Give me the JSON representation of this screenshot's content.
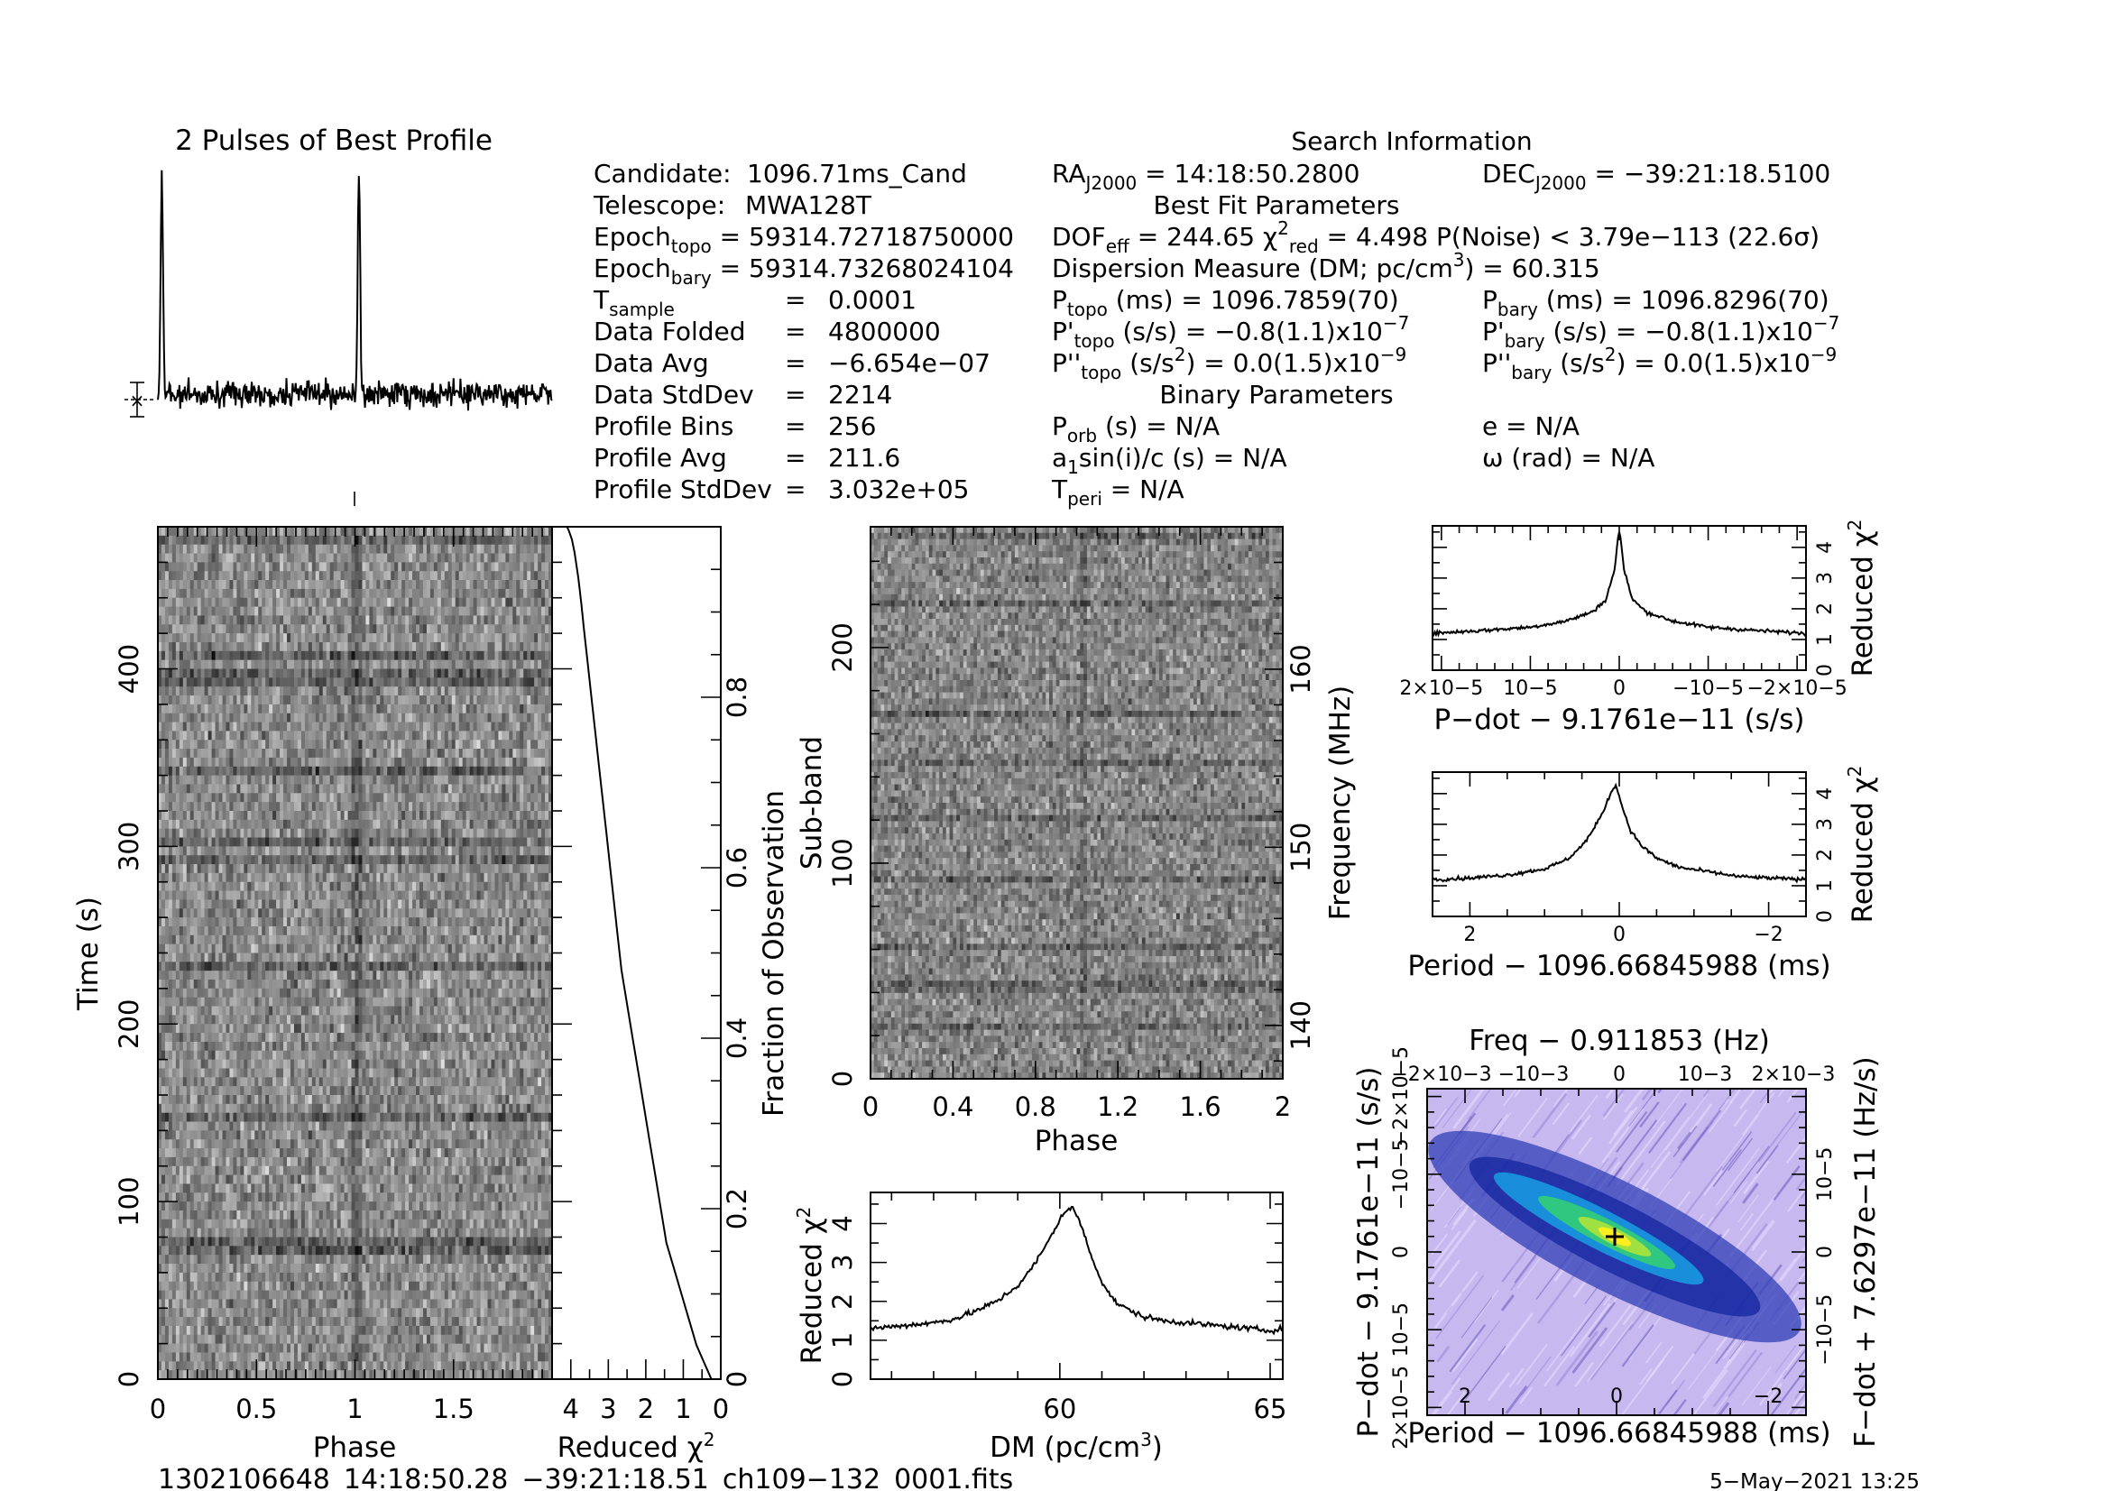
{
  "chart_data": [
    {
      "id": "profile",
      "type": "line",
      "title": "2 Pulses of Best Profile",
      "x": {
        "range": [
          0,
          2
        ]
      },
      "peaks_at_phase": [
        0.02,
        1.02
      ]
    },
    {
      "id": "time_phase",
      "type": "heatmap",
      "xlabel": "Phase",
      "ylabel": "Time (s)",
      "xlim": [
        0,
        2
      ],
      "ylim": [
        0,
        480
      ],
      "xticks": [
        "0",
        "0.5",
        "1",
        "1.5"
      ],
      "yticks": [
        "0",
        "100",
        "200",
        "300",
        "400"
      ]
    },
    {
      "id": "chi_time",
      "type": "line",
      "xlabel": "Reduced χ2",
      "ylabel": "Fraction of Observation",
      "xlim": [
        4.5,
        0
      ],
      "ylim": [
        0,
        1
      ],
      "xticks": [
        "4",
        "3",
        "2",
        "1",
        "0"
      ],
      "yticks": [
        "0",
        "0.2",
        "0.4",
        "0.6",
        "0.8"
      ],
      "x": [
        0.25,
        0.45,
        0.65,
        0.85,
        1.05,
        1.25,
        1.45,
        1.6,
        1.75,
        1.9,
        2.05,
        2.2,
        2.35,
        2.5,
        2.65,
        2.75,
        2.85,
        2.95,
        3.05,
        3.15,
        3.25,
        3.35,
        3.45,
        3.55,
        3.65,
        3.72,
        3.8,
        3.9,
        3.97,
        4.05,
        4.1
      ],
      "y": [
        0.0,
        0.02,
        0.04,
        0.07,
        0.1,
        0.13,
        0.16,
        0.2,
        0.24,
        0.28,
        0.32,
        0.36,
        0.4,
        0.44,
        0.48,
        0.52,
        0.56,
        0.6,
        0.64,
        0.68,
        0.72,
        0.76,
        0.8,
        0.84,
        0.88,
        0.91,
        0.94,
        0.97,
        0.985,
        0.995,
        1.0
      ]
    },
    {
      "id": "subband_phase",
      "type": "heatmap",
      "xlabel": "Phase",
      "ylabel": "Sub-band",
      "y2label": "Frequency (MHz)",
      "xlim": [
        0,
        2
      ],
      "ylim": [
        0,
        256
      ],
      "xticks": [
        "0",
        "0.4",
        "0.8",
        "1.2",
        "1.6",
        "2"
      ],
      "yticks": [
        "0",
        "100",
        "200"
      ],
      "y2ticks": [
        "140",
        "150",
        "160"
      ]
    },
    {
      "id": "dm_chi",
      "type": "line",
      "xlabel": "DM (pc/cm3)",
      "ylabel": "Reduced χ2",
      "xlim": [
        55.5,
        65.3
      ],
      "ylim": [
        0,
        4.8
      ],
      "xticks": [
        "60",
        "65"
      ],
      "yticks": [
        "0",
        "1",
        "2",
        "3",
        "4"
      ],
      "x": [
        55.5,
        56.0,
        56.5,
        57.0,
        57.5,
        58.0,
        58.5,
        59.0,
        59.3,
        59.6,
        59.9,
        60.1,
        60.3,
        60.5,
        60.7,
        61.0,
        61.3,
        61.6,
        62.0,
        62.5,
        63.0,
        63.5,
        64.0,
        64.5,
        65.0,
        65.3
      ],
      "y": [
        1.3,
        1.35,
        1.4,
        1.45,
        1.55,
        1.75,
        2.0,
        2.4,
        2.8,
        3.3,
        3.9,
        4.3,
        4.4,
        4.0,
        3.3,
        2.5,
        2.0,
        1.8,
        1.6,
        1.5,
        1.45,
        1.4,
        1.35,
        1.3,
        1.25,
        1.3
      ]
    },
    {
      "id": "pdot_chi",
      "type": "line",
      "xlabel": "P−dot − 9.1761e−11 (s/s)",
      "ylabel": "Reduced χ2",
      "xlim": [
        2.1e-05,
        -2.1e-05
      ],
      "ylim": [
        0,
        4.7
      ],
      "xticks": [
        "2×10−5",
        "10−5",
        "0",
        "−10−5",
        "−2×10−5"
      ],
      "yticks": [
        "0",
        "1",
        "2",
        "3",
        "4"
      ],
      "x": [
        2.1e-05,
        1.5e-05,
        1e-05,
        6e-06,
        3e-06,
        1.5e-06,
        5e-07,
        2e-07,
        0,
        -2e-07,
        -5e-07,
        -1.5e-06,
        -3e-06,
        -6e-06,
        -1e-05,
        -1.5e-05,
        -2.1e-05
      ],
      "y": [
        1.2,
        1.3,
        1.4,
        1.6,
        1.9,
        2.3,
        3.3,
        4.2,
        4.5,
        4.2,
        3.3,
        2.3,
        1.9,
        1.6,
        1.4,
        1.3,
        1.2
      ]
    },
    {
      "id": "period_chi",
      "type": "line",
      "xlabel": "Period − 1096.66845988 (ms)",
      "ylabel": "Reduced χ2",
      "xlim": [
        2.5,
        -2.5
      ],
      "ylim": [
        0,
        4.7
      ],
      "xticks": [
        "2",
        "0",
        "−2"
      ],
      "yticks": [
        "0",
        "1",
        "2",
        "3",
        "4"
      ],
      "x": [
        2.5,
        2.0,
        1.5,
        1.0,
        0.7,
        0.5,
        0.35,
        0.2,
        0.1,
        0.05,
        -0.05,
        -0.15,
        -0.3,
        -0.5,
        -0.8,
        -1.2,
        -1.6,
        -2.0,
        -2.5
      ],
      "y": [
        1.2,
        1.25,
        1.35,
        1.55,
        1.85,
        2.3,
        2.8,
        3.5,
        4.1,
        4.3,
        3.5,
        2.8,
        2.3,
        1.9,
        1.6,
        1.45,
        1.3,
        1.25,
        1.2
      ]
    },
    {
      "id": "ppdot_plane",
      "type": "heatmap",
      "title": "Freq − 0.911853 (Hz)",
      "xlabel": "Period − 1096.66845988 (ms)",
      "ylabel": "P−dot − 9.1761e−11 (s/s)",
      "y2label": "F−dot + 7.6297e−11 (Hz/s)",
      "xlim": [
        2.5,
        -2.5
      ],
      "ylim": [
        -2.1e-05,
        2.1e-05
      ],
      "xticks": [
        "2",
        "0",
        "−2"
      ],
      "yticks": [
        "2×10−5",
        "10−5",
        "0",
        "−10−5",
        "−2×10−5"
      ],
      "x2ticks": [
        "−2×10−3",
        "−10−3",
        "0",
        "10−3",
        "2×10−3"
      ],
      "y2ticks": [
        "10−5",
        "0",
        "−10−5"
      ],
      "best": [
        0,
        0
      ]
    }
  ],
  "info": {
    "search_title": "Search Information",
    "candidate_label": "Candidate:",
    "candidate": "1096.71ms_Cand",
    "telescope_label": "Telescope:",
    "telescope": "MWA128T",
    "epoch_topo": "59314.72718750000",
    "epoch_bary": "59314.73268024104",
    "t_sample": "0.0001",
    "data_folded": "4800000",
    "data_avg": "−6.654e−07",
    "data_stddev": "2214",
    "profile_bins": "256",
    "profile_avg": "211.6",
    "profile_stddev": "3.032e+05",
    "ra": "14:18:50.2800",
    "dec": "−39:21:18.5100",
    "best_fit_title": "Best Fit Parameters",
    "dof_eff": "244.65",
    "chi2_red": "4.498",
    "p_noise": "3.79e−113",
    "sigma": "(22.6σ)",
    "dm": "60.315",
    "p_topo": "1096.7859(70)",
    "p_bary": "1096.8296(70)",
    "pd_topo": "−0.8(1.1)",
    "pd_bary": "−0.8(1.1)",
    "pdd_topo": "0.0(1.5)",
    "pdd_bary": "0.0(1.5)",
    "binary_title": "Binary Parameters",
    "p_orb": "N/A",
    "a1sini": "N/A",
    "t_peri": "N/A",
    "ecc": "N/A",
    "omega": "N/A"
  },
  "footer": {
    "filename": "1302106648_14:18:50.28_−39:21:18.51_ch109−132_0001.fits",
    "date": "5−May−2021 13:25"
  }
}
